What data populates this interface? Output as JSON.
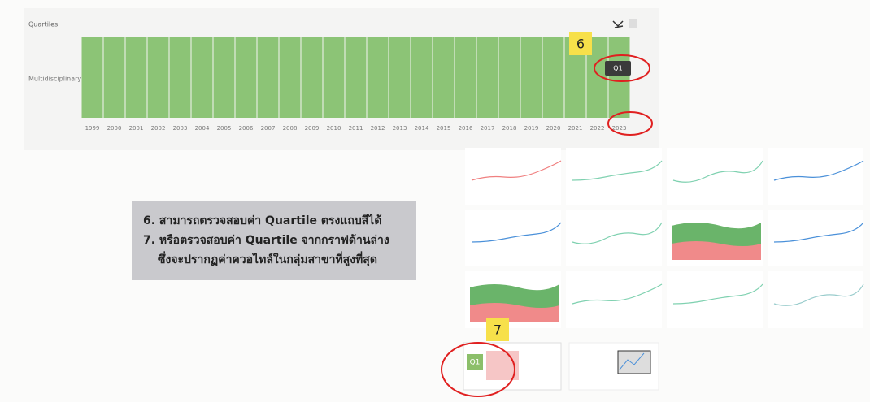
{
  "quartile_chart": {
    "title": "Quartiles",
    "category": "Multidisciplinary",
    "years": [
      "1999",
      "2000",
      "2001",
      "2002",
      "2003",
      "2004",
      "2005",
      "2006",
      "2007",
      "2008",
      "2009",
      "2010",
      "2011",
      "2012",
      "2013",
      "2014",
      "2015",
      "2016",
      "2017",
      "2018",
      "2019",
      "2020",
      "2021",
      "2022",
      "2023"
    ],
    "tooltip": "Q1"
  },
  "badges": [
    "6",
    "7"
  ],
  "note": {
    "lines": [
      "6. สามารถตรวจสอบค่า Quartile ตรงแถบสีได้",
      "7. หรือตรวจสอบค่า Quartile จากกราฟด้านล่าง",
      "ซึ่งจะปรากฏค่าควอไทล์ในกลุ่มสาขาที่สูงที่สุด"
    ]
  },
  "widget": {
    "quartile": "Q1"
  }
}
